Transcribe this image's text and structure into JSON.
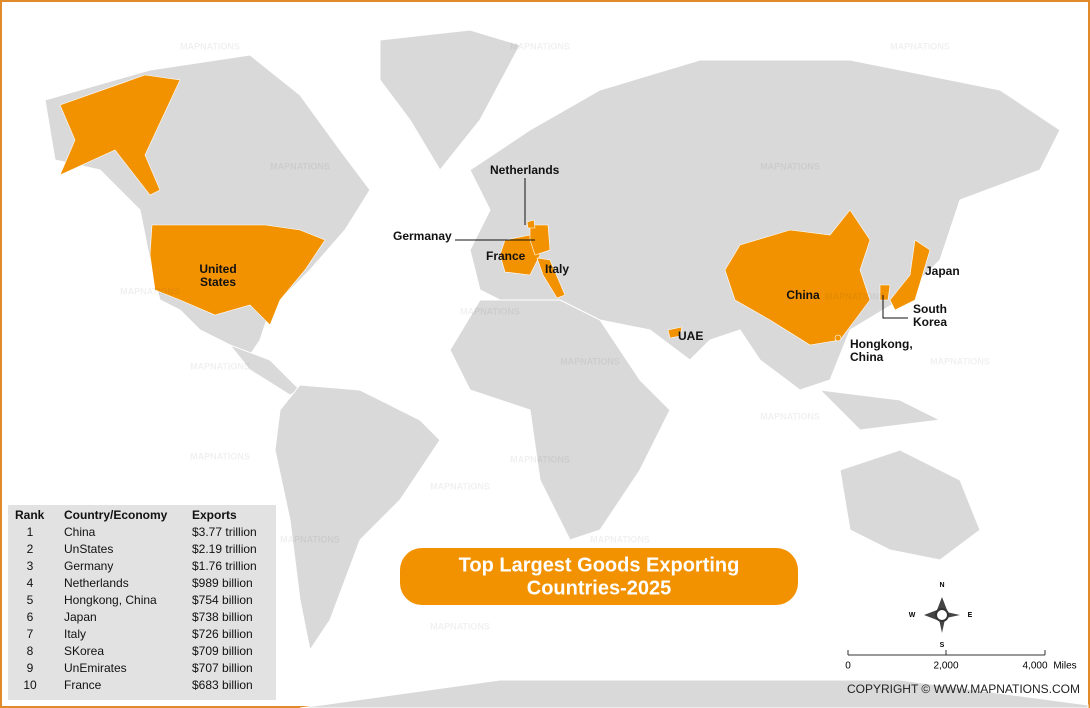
{
  "title": [
    "Top Largest Goods Exporting",
    "Countries-2025"
  ],
  "table": {
    "headers": [
      "Rank",
      "Country/Economy",
      "Exports"
    ],
    "rows": [
      [
        1,
        "China",
        "$3.77 trillion"
      ],
      [
        2,
        "UnStates",
        "$2.19 trillion"
      ],
      [
        3,
        "Germany",
        "$1.76 trillion"
      ],
      [
        4,
        "Netherlands",
        "$989 billion"
      ],
      [
        5,
        "Hongkong, China",
        "$754 billion"
      ],
      [
        6,
        "Japan",
        "$738 billion"
      ],
      [
        7,
        "Italy",
        "$726 billion"
      ],
      [
        8,
        "SKorea",
        "$709 billion"
      ],
      [
        9,
        "UnEmirates",
        "$707 billion"
      ],
      [
        10,
        "France",
        "$683 billion"
      ]
    ]
  },
  "labels": [
    {
      "lines": [
        "Netherlands"
      ]
    },
    {
      "lines": [
        "Germanay"
      ]
    },
    {
      "lines": [
        "France"
      ]
    },
    {
      "lines": [
        "Italy"
      ]
    },
    {
      "lines": [
        "United",
        "States"
      ]
    },
    {
      "lines": [
        "China"
      ]
    },
    {
      "lines": [
        "Japan"
      ]
    },
    {
      "lines": [
        "South",
        "Korea"
      ]
    },
    {
      "lines": [
        "UAE"
      ]
    },
    {
      "lines": [
        "Hongkong,",
        "China"
      ]
    }
  ],
  "scale": {
    "ticks": [
      "0",
      "2,000",
      "4,000"
    ],
    "unit": "Miles"
  },
  "compass": {
    "n": "N",
    "e": "E",
    "s": "S",
    "w": "W"
  },
  "copyright": "COPYRIGHT © WWW.MAPNATIONS.COM",
  "watermark": "MAPNATIONS"
}
